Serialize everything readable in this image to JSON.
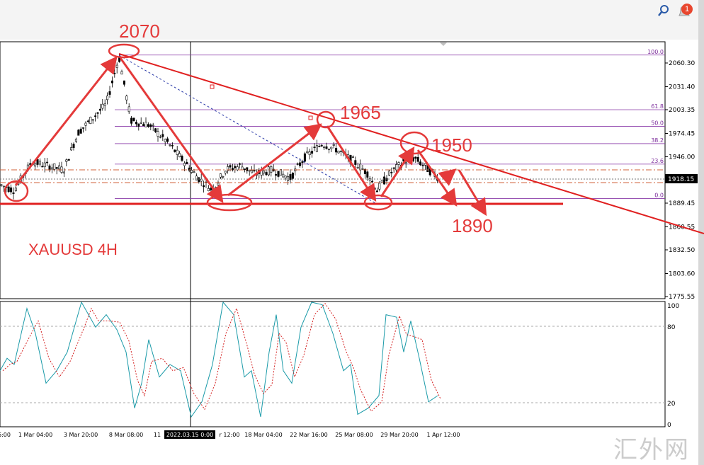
{
  "toolbar": {
    "notification_count": "1"
  },
  "symbol_label": "XAUUSD 4H",
  "watermark": "汇外网",
  "price_scale": [
    "2060.30",
    "2031.40",
    "2003.35",
    "1974.45",
    "1946.00",
    "1918.15",
    "1889.45",
    "1860.55",
    "1832.50",
    "1803.60",
    "1775.55"
  ],
  "current_price": "1918.15",
  "fib_levels": [
    {
      "label": "100.0",
      "price": 2070
    },
    {
      "label": "61.8",
      "price": 2003.35
    },
    {
      "label": "50.0",
      "price": 1983
    },
    {
      "label": "38.2",
      "price": 1962
    },
    {
      "label": "23.6",
      "price": 1937
    },
    {
      "label": "0.0",
      "price": 1895
    }
  ],
  "annotations": {
    "high_label": "2070",
    "mid_label": "1965",
    "right_label": "1950",
    "target_label": "1890"
  },
  "time_axis": [
    "6:00",
    "1 Mar 04:00",
    "3 Mar 20:00",
    "8 Mar 08:00",
    "11",
    "2022.03.15 0:00",
    "r 12:00",
    "18 Mar 04:00",
    "22 Mar 16:00",
    "25 Mar 08:00",
    "29 Mar 20:00",
    "1 Apr 12:00"
  ],
  "stoch_scale": [
    "100",
    "80",
    "20",
    "0"
  ],
  "colors": {
    "annotation": "#e43a3a",
    "fib": "#8a3aa8",
    "stoch_main": "#1a9aa8",
    "stoch_signal": "#d42020"
  },
  "chart_data": {
    "type": "line",
    "title": "XAUUSD 4H",
    "key_levels": {
      "high": 2070,
      "resistance": 1965,
      "lower_high": 1950,
      "support": 1890
    },
    "series": [
      {
        "name": "",
        "x": [
          "2022-02-25",
          "2022-03-01",
          "2022-03-08",
          "2022-03-15",
          "2022-03-18",
          "2022-03-23",
          "2022-03-28",
          "2022-03-31",
          "2022-04-01"
        ],
        "values": [
          1895,
          1920,
          2070,
          1895,
          1925,
          1965,
          1892,
          1950,
          1925
        ]
      }
    ],
    "ylim": [
      1775,
      2075
    ]
  }
}
